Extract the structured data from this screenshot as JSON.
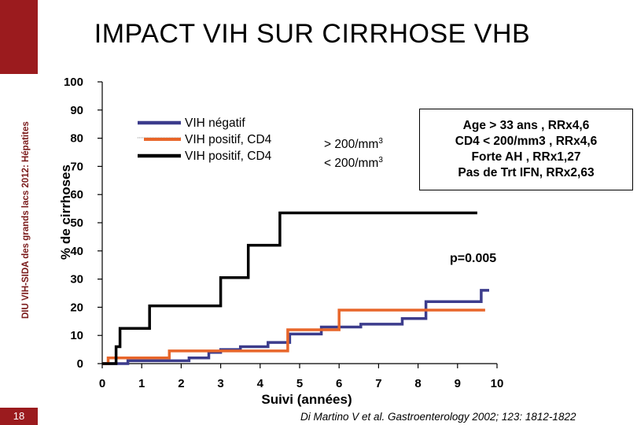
{
  "slide": {
    "title": "IMPACT VIH SUR CIRRHOSE VHB",
    "side_banner": "DIU VIH-SIDA des grands lacs 2012: Hépatites",
    "slide_number": "18",
    "citation": "Di Martino V et al. Gastroenterology 2002; 123: 1812-1822"
  },
  "colors": {
    "brand": "#9b1b1e",
    "blue": "#3c3c8c",
    "orange": "#e8662a",
    "black": "#000000"
  },
  "legend": {
    "items": [
      {
        "label": "VIH négatif",
        "color": "#3c3c8c"
      },
      {
        "label": "VIH positif,   CD4",
        "color": "#e8662a"
      },
      {
        "label": "VIH  positif,  CD4",
        "color": "#000000"
      }
    ],
    "threshold_high": "> 200/mm",
    "threshold_low": "< 200/mm",
    "superscript": "3"
  },
  "annotation_box": {
    "lines": [
      "Age > 33 ans , RRx4,6",
      "CD4 < 200/mm3 , RRx4,6",
      "Forte AH , RRx1,27",
      "Pas de Trt IFN, RRx2,63"
    ]
  },
  "pvalue": "p=0.005",
  "chart_data": {
    "type": "line",
    "xlabel": "Suivi (années)",
    "ylabel": "% de cirrhoses",
    "xlim": [
      0,
      10
    ],
    "ylim": [
      0,
      100
    ],
    "xticks": [
      0,
      1,
      2,
      3,
      4,
      5,
      6,
      7,
      8,
      9,
      10
    ],
    "yticks": [
      0,
      10,
      20,
      30,
      40,
      50,
      60,
      70,
      80,
      90,
      100
    ],
    "series": [
      {
        "name": "VIH négatif",
        "color": "#3c3c8c",
        "points": [
          [
            0,
            0
          ],
          [
            0.65,
            0
          ],
          [
            0.65,
            1
          ],
          [
            2.2,
            1
          ],
          [
            2.2,
            2
          ],
          [
            2.7,
            2
          ],
          [
            2.7,
            4
          ],
          [
            3,
            4
          ],
          [
            3,
            5
          ],
          [
            3.5,
            5
          ],
          [
            3.5,
            6
          ],
          [
            4.2,
            6
          ],
          [
            4.2,
            7.5
          ],
          [
            4.75,
            7.5
          ],
          [
            4.75,
            10.5
          ],
          [
            5.55,
            10.5
          ],
          [
            5.55,
            12
          ],
          [
            5.55,
            12
          ],
          [
            5.55,
            13
          ],
          [
            6.55,
            13
          ],
          [
            6.55,
            14
          ],
          [
            7.6,
            14
          ],
          [
            7.6,
            16
          ],
          [
            8.2,
            16
          ],
          [
            8.2,
            22
          ],
          [
            9.6,
            22
          ],
          [
            9.6,
            26
          ],
          [
            9.8,
            26
          ]
        ]
      },
      {
        "name": "VIH positif,   CD4 > 200/mm3",
        "color": "#e8662a",
        "points": [
          [
            0,
            0
          ],
          [
            0.15,
            0
          ],
          [
            0.15,
            2
          ],
          [
            1.7,
            2
          ],
          [
            1.7,
            4.5
          ],
          [
            3.8,
            4.5
          ],
          [
            4.7,
            4.5
          ],
          [
            4.7,
            12
          ],
          [
            5.1,
            12
          ],
          [
            5.1,
            12
          ],
          [
            6,
            12
          ],
          [
            6,
            19
          ],
          [
            9.7,
            19
          ]
        ]
      },
      {
        "name": "VIH  positif,  CD4 < 200/mm3",
        "color": "#000000",
        "points": [
          [
            0,
            0
          ],
          [
            0.35,
            0
          ],
          [
            0.35,
            6
          ],
          [
            0.45,
            6
          ],
          [
            0.45,
            12.5
          ],
          [
            1.2,
            12.5
          ],
          [
            1.2,
            20.5
          ],
          [
            3,
            20.5
          ],
          [
            3,
            30.5
          ],
          [
            3.7,
            30.5
          ],
          [
            3.7,
            42
          ],
          [
            4.5,
            42
          ],
          [
            4.5,
            53.5
          ],
          [
            9.5,
            53.5
          ]
        ]
      }
    ]
  }
}
